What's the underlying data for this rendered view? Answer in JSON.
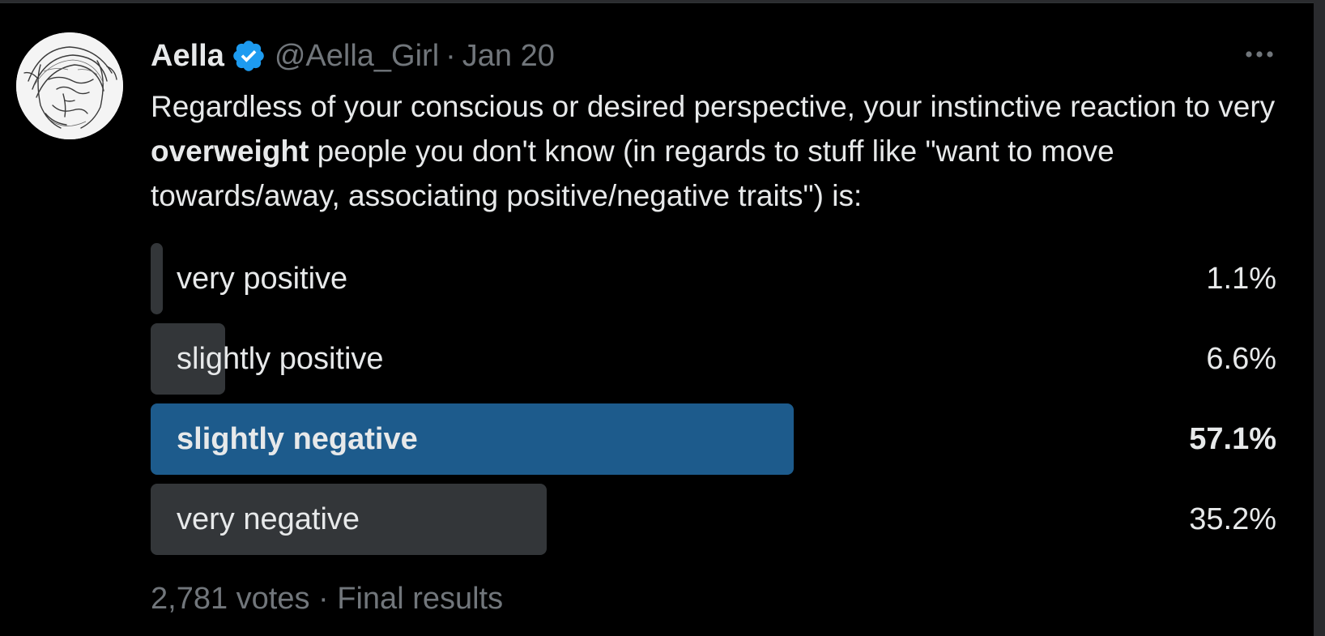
{
  "tweet": {
    "author_name": "Aella",
    "handle": "@Aella_Girl",
    "separator": "·",
    "date": "Jan 20",
    "text_before": "Regardless of your conscious or desired perspective, your instinctive reaction to very ",
    "text_bold": "overweight",
    "text_after": " people you don't know (in regards to stuff like \"want to move towards/away, associating positive/negative traits\") is:"
  },
  "poll": {
    "options": [
      {
        "label": "very positive",
        "percent_text": "1.1%",
        "percent": 1.1,
        "winner": false
      },
      {
        "label": "slightly positive",
        "percent_text": "6.6%",
        "percent": 6.6,
        "winner": false
      },
      {
        "label": "slightly negative",
        "percent_text": "57.1%",
        "percent": 57.1,
        "winner": true
      },
      {
        "label": "very negative",
        "percent_text": "35.2%",
        "percent": 35.2,
        "winner": false
      }
    ],
    "votes": "2,781 votes",
    "separator": "·",
    "status": "Final results"
  },
  "colors": {
    "background": "#000000",
    "text": "#e7e9ea",
    "secondary_text": "#71767b",
    "bar": "#333639",
    "winner_bar": "#1d5b8c",
    "verified": "#1d9bf0"
  },
  "icons": {
    "verified": "verified-badge-icon",
    "more": "more-horizontal-icon"
  }
}
